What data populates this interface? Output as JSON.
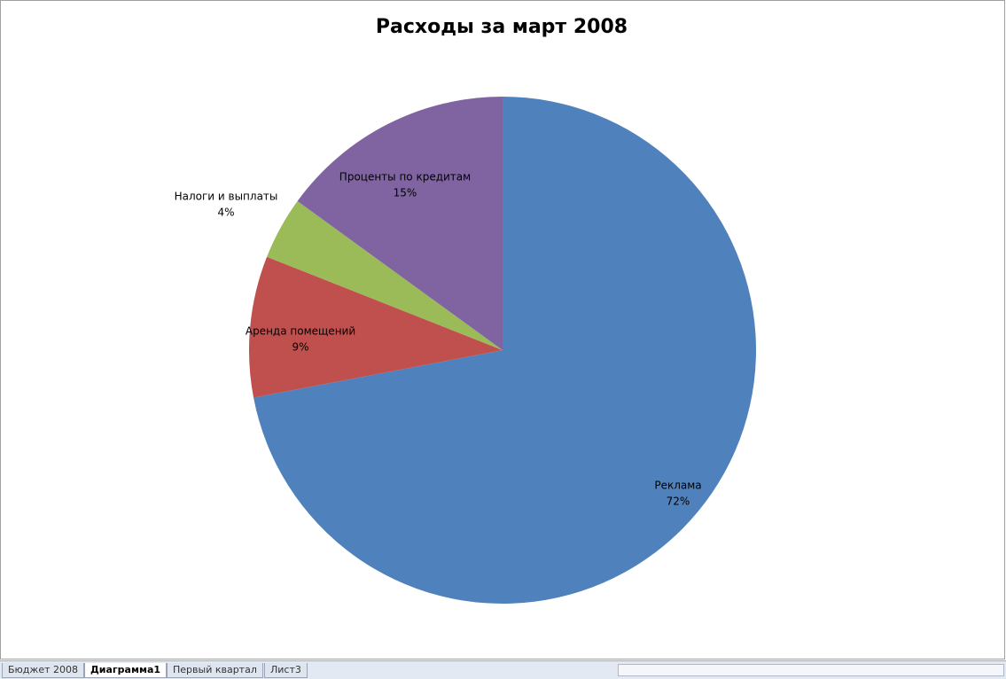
{
  "chart_data": {
    "type": "pie",
    "title": "Расходы за март 2008",
    "categories": [
      "Реклама",
      "Аренда помещений",
      "Налоги и выплаты",
      "Проценты по кредитам"
    ],
    "values": [
      72,
      9,
      4,
      15
    ],
    "value_labels": [
      "72%",
      "9%",
      "4%",
      "15%"
    ],
    "colors": [
      "#4f81bd",
      "#c0504d",
      "#9bbb59",
      "#8064a2"
    ]
  },
  "tabs": [
    "Бюджет 2008",
    "Диаграмма1",
    "Первый квартал",
    "Лист3"
  ]
}
